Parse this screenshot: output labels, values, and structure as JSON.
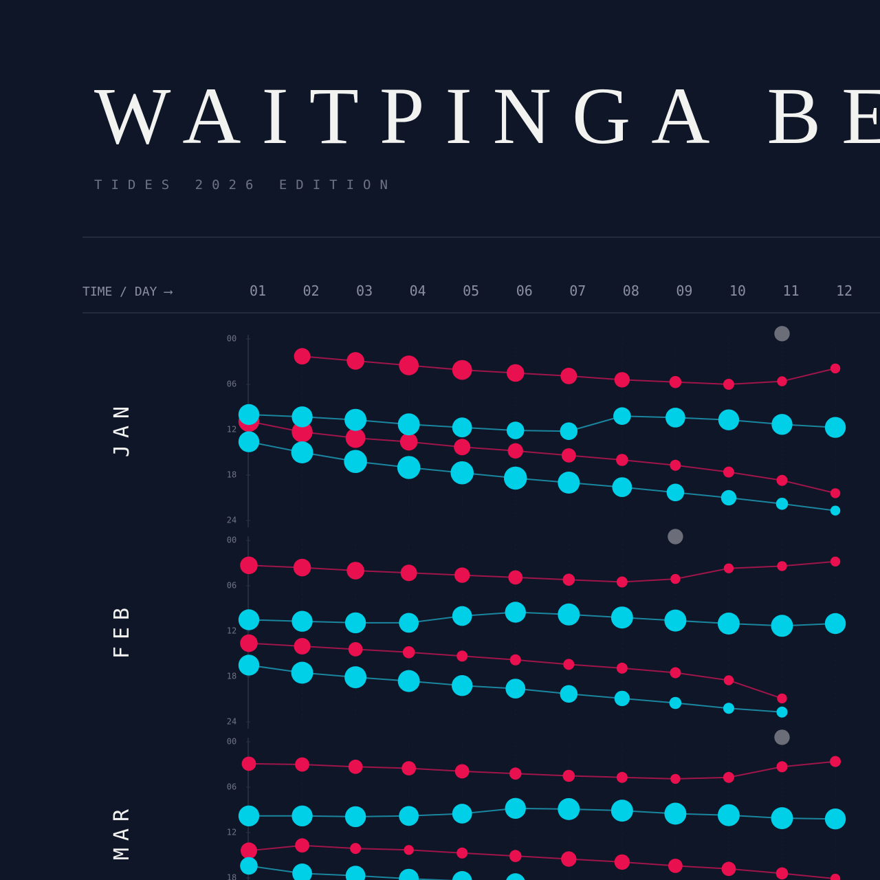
{
  "header": {
    "title": "WAITPINGA BE",
    "subtitle": "TIDES 2026 EDITION"
  },
  "chart_data": [
    {
      "type": "bubble",
      "title": "JAN",
      "x_label": "TIME / DAY ⟶",
      "categories": [
        "01",
        "02",
        "03",
        "04",
        "05",
        "06",
        "07",
        "08",
        "09",
        "10",
        "11",
        "12"
      ],
      "ylim": [
        0,
        24
      ],
      "yticks": [
        {
          "value": 0,
          "label": "00"
        },
        {
          "value": 6,
          "label": "06"
        },
        12,
        18,
        24
      ],
      "series": [
        {
          "color": "#e8104f",
          "values": [
            null,
            2.3,
            2.9,
            3.5,
            4.1,
            4.5,
            4.9,
            5.4,
            5.7,
            6.0,
            5.6,
            3.9
          ],
          "sizes": [
            null,
            1.5,
            1.6,
            1.8,
            1.8,
            1.6,
            1.5,
            1.4,
            1.1,
            1,
            0.9,
            0.9
          ]
        },
        {
          "color": "#e8104f",
          "values": [
            10.9,
            12.3,
            13.1,
            13.6,
            14.3,
            14.8,
            15.4,
            16.0,
            16.7,
            17.6,
            18.7,
            20.4
          ],
          "sizes": [
            1.9,
            1.9,
            1.8,
            1.6,
            1.5,
            1.4,
            1.3,
            1.1,
            1,
            1,
            1,
            0.9
          ]
        },
        {
          "color": "#00cfe8",
          "values": [
            10.0,
            10.3,
            10.7,
            11.3,
            11.7,
            12.1,
            12.2,
            10.2,
            10.4,
            10.7,
            11.3,
            11.7
          ],
          "sizes": [
            1.9,
            1.9,
            2,
            2,
            1.8,
            1.6,
            1.6,
            1.6,
            1.8,
            1.9,
            1.9,
            1.9
          ]
        },
        {
          "color": "#00cfe8",
          "values": [
            13.6,
            15.0,
            16.2,
            17.0,
            17.7,
            18.4,
            19.0,
            19.6,
            20.3,
            21.0,
            21.8,
            22.7
          ],
          "sizes": [
            1.9,
            2,
            2.1,
            2.1,
            2.1,
            2.1,
            2,
            1.8,
            1.6,
            1.4,
            1.1,
            0.9
          ]
        },
        {
          "color": "#6b6e78",
          "values": [
            null,
            null,
            null,
            null,
            null,
            null,
            null,
            null,
            null,
            null,
            -0.7,
            null
          ],
          "sizes": [
            null,
            null,
            null,
            null,
            null,
            null,
            null,
            null,
            null,
            null,
            1.4,
            null
          ]
        }
      ]
    },
    {
      "type": "bubble",
      "title": "FEB",
      "categories": [
        "01",
        "02",
        "03",
        "04",
        "05",
        "06",
        "07",
        "08",
        "09",
        "10",
        "11",
        "12"
      ],
      "ylim": [
        0,
        24
      ],
      "yticks": [
        {
          "value": 0,
          "label": "00"
        },
        {
          "value": 6,
          "label": "06"
        },
        12,
        18,
        24
      ],
      "series": [
        {
          "color": "#e8104f",
          "values": [
            3.3,
            3.6,
            4.0,
            4.3,
            4.6,
            4.9,
            5.2,
            5.5,
            5.1,
            3.7,
            3.4,
            2.8
          ],
          "sizes": [
            1.6,
            1.6,
            1.6,
            1.5,
            1.4,
            1.3,
            1.1,
            1,
            0.9,
            0.9,
            0.9,
            0.9
          ]
        },
        {
          "color": "#00cfe8",
          "values": [
            10.5,
            10.7,
            10.9,
            10.9,
            10.0,
            9.5,
            9.8,
            10.2,
            10.6,
            11.0,
            11.3,
            11.0
          ],
          "sizes": [
            1.9,
            1.9,
            1.9,
            1.8,
            1.8,
            1.9,
            2,
            2,
            2,
            2,
            2,
            1.9
          ]
        },
        {
          "color": "#e8104f",
          "values": [
            13.6,
            14.0,
            14.4,
            14.8,
            15.3,
            15.8,
            16.4,
            16.9,
            17.5,
            18.5,
            20.9,
            null
          ],
          "sizes": [
            1.6,
            1.5,
            1.3,
            1.1,
            1,
            1,
            1,
            1,
            1,
            0.9,
            0.9,
            null
          ]
        },
        {
          "color": "#00cfe8",
          "values": [
            16.5,
            17.5,
            18.1,
            18.6,
            19.2,
            19.6,
            20.3,
            20.9,
            21.5,
            22.2,
            22.7,
            null
          ],
          "sizes": [
            1.9,
            2,
            2,
            2,
            1.9,
            1.8,
            1.6,
            1.4,
            1.1,
            1,
            1,
            null
          ]
        },
        {
          "color": "#6b6e78",
          "values": [
            null,
            null,
            null,
            null,
            null,
            null,
            null,
            null,
            -0.5,
            null,
            null,
            null
          ],
          "sizes": [
            null,
            null,
            null,
            null,
            null,
            null,
            null,
            null,
            1.4,
            null,
            null,
            null
          ]
        }
      ]
    },
    {
      "type": "bubble",
      "title": "MAR",
      "categories": [
        "01",
        "02",
        "03",
        "04",
        "05",
        "06",
        "07",
        "08",
        "09",
        "10",
        "11",
        "12"
      ],
      "ylim": [
        0,
        24
      ],
      "yticks": [
        {
          "value": 0,
          "label": "00"
        },
        {
          "value": 6,
          "label": "06"
        },
        12,
        18
      ],
      "series": [
        {
          "color": "#e8104f",
          "values": [
            2.9,
            3.0,
            3.3,
            3.5,
            3.9,
            4.2,
            4.5,
            4.7,
            4.9,
            4.7,
            3.3,
            2.6
          ],
          "sizes": [
            1.3,
            1.3,
            1.3,
            1.3,
            1.3,
            1.1,
            1.1,
            1,
            0.9,
            1,
            1,
            1
          ]
        },
        {
          "color": "#00cfe8",
          "values": [
            9.8,
            9.8,
            9.9,
            9.8,
            9.5,
            8.8,
            8.9,
            9.1,
            9.5,
            9.7,
            10.1,
            10.2
          ],
          "sizes": [
            1.9,
            1.9,
            1.9,
            1.8,
            1.8,
            1.9,
            2,
            2,
            2,
            2,
            2,
            1.9
          ]
        },
        {
          "color": "#e8104f",
          "values": [
            14.4,
            13.7,
            14.1,
            14.3,
            14.7,
            15.1,
            15.5,
            15.9,
            16.4,
            16.8,
            17.4,
            18.1
          ],
          "sizes": [
            1.5,
            1.3,
            1,
            0.9,
            1,
            1.1,
            1.4,
            1.4,
            1.3,
            1.3,
            1.1,
            0.9
          ]
        },
        {
          "color": "#00cfe8",
          "values": [
            16.4,
            17.4,
            17.7,
            18.1,
            18.4,
            18.7,
            null,
            null,
            null,
            null,
            null,
            null
          ],
          "sizes": [
            1.6,
            1.8,
            1.8,
            1.8,
            1.8,
            1.8,
            null,
            null,
            null,
            null,
            null,
            null
          ]
        },
        {
          "color": "#6b6e78",
          "values": [
            null,
            null,
            null,
            null,
            null,
            null,
            null,
            null,
            null,
            null,
            -0.6,
            null
          ],
          "sizes": [
            null,
            null,
            null,
            null,
            null,
            null,
            null,
            null,
            null,
            null,
            1.4,
            null
          ]
        }
      ]
    }
  ]
}
